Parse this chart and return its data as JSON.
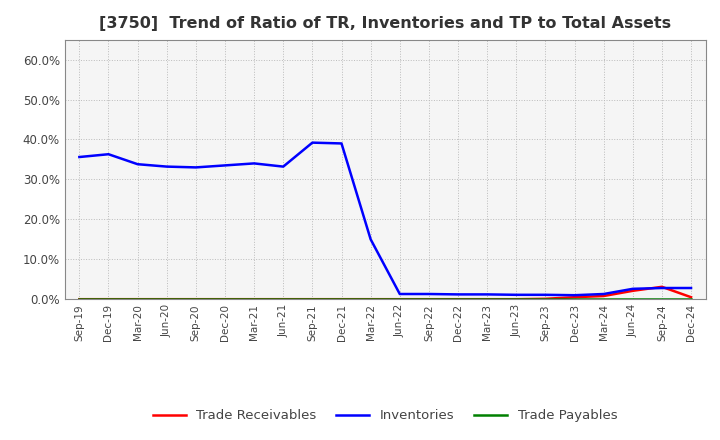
{
  "title": "[3750]  Trend of Ratio of TR, Inventories and TP to Total Assets",
  "title_fontsize": 11.5,
  "ylim": [
    0.0,
    0.65
  ],
  "yticks": [
    0.0,
    0.1,
    0.2,
    0.3,
    0.4,
    0.5,
    0.6
  ],
  "x_labels": [
    "Sep-19",
    "Dec-19",
    "Mar-20",
    "Jun-20",
    "Sep-20",
    "Dec-20",
    "Mar-21",
    "Jun-21",
    "Sep-21",
    "Dec-21",
    "Mar-22",
    "Jun-22",
    "Sep-22",
    "Dec-22",
    "Mar-23",
    "Jun-23",
    "Sep-23",
    "Dec-23",
    "Mar-24",
    "Jun-24",
    "Sep-24",
    "Dec-24"
  ],
  "trade_receivables": [
    0.0,
    0.0,
    0.0,
    0.0,
    0.0,
    0.0,
    0.0,
    0.0,
    0.0,
    0.0,
    0.0,
    0.0,
    0.0,
    0.0,
    0.0,
    0.0,
    0.001,
    0.005,
    0.008,
    0.021,
    0.031,
    0.005
  ],
  "inventories": [
    0.356,
    0.363,
    0.338,
    0.332,
    0.33,
    0.335,
    0.34,
    0.332,
    0.392,
    0.39,
    0.15,
    0.013,
    0.013,
    0.012,
    0.012,
    0.011,
    0.011,
    0.01,
    0.013,
    0.026,
    0.028,
    0.028
  ],
  "trade_payables": [
    0.0,
    0.0,
    0.0,
    0.0,
    0.0,
    0.0,
    0.0,
    0.0,
    0.0,
    0.0,
    0.0,
    0.0,
    0.0,
    0.0,
    0.0,
    0.0,
    0.0,
    0.0,
    0.0,
    0.0,
    0.0,
    0.0
  ],
  "tr_color": "#ff0000",
  "inv_color": "#0000ff",
  "tp_color": "#008000",
  "legend_labels": [
    "Trade Receivables",
    "Inventories",
    "Trade Payables"
  ],
  "background_color": "#ffffff",
  "plot_bg_color": "#f5f5f5",
  "grid_color": "#bbbbbb",
  "title_color": "#333333",
  "tick_color": "#444444"
}
